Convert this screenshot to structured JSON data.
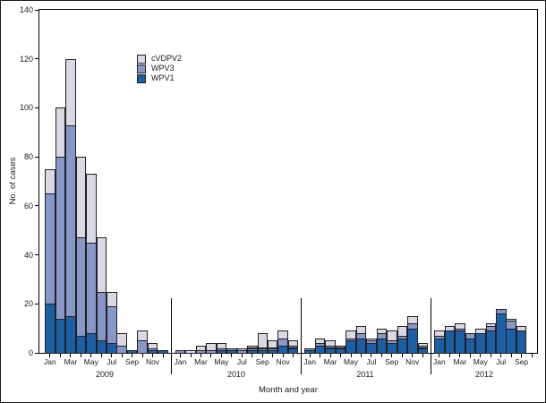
{
  "figure": {
    "y_axis_title": "No. of cases",
    "x_axis_title": "Month and year"
  },
  "legend": {
    "items": [
      {
        "label": "cVDPV2",
        "series": "cVDPV2"
      },
      {
        "label": "WPV3",
        "series": "WPV3"
      },
      {
        "label": "WPV1",
        "series": "WPV1"
      }
    ]
  },
  "chart_data": {
    "type": "bar",
    "subtype": "stacked-bar",
    "title": "",
    "ylabel": "No. of cases",
    "xlabel": "Month and year",
    "ylim": [
      0,
      140
    ],
    "ytick_step": 20,
    "yticks": [
      0,
      20,
      40,
      60,
      80,
      100,
      120,
      140
    ],
    "grid": false,
    "legend_position": "upper-left-inside",
    "month_names": [
      "Jan",
      "Feb",
      "Mar",
      "Apr",
      "May",
      "Jun",
      "Jul",
      "Aug",
      "Sep",
      "Oct",
      "Nov",
      "Dec"
    ],
    "labeled_month_indices": [
      0,
      2,
      4,
      6,
      8,
      10
    ],
    "series_order_bottom_to_top": [
      "WPV1",
      "WPV3",
      "cVDPV2"
    ],
    "colors": {
      "WPV1": "#1d5fa5",
      "WPV3": "#8697c8",
      "cVDPV2": "#d8d9e4",
      "bar_outline": "#231f20",
      "axis": "#000000"
    },
    "years": [
      {
        "year": "2009",
        "n_months": 12,
        "WPV1": [
          20,
          14,
          15,
          7,
          8,
          5,
          4,
          0,
          1,
          0,
          1,
          1
        ],
        "WPV3": [
          45,
          66,
          78,
          40,
          37,
          20,
          15,
          3,
          0,
          5,
          1,
          0
        ],
        "cVDPV2": [
          10,
          20,
          27,
          33,
          28,
          22,
          6,
          5,
          0,
          4,
          2,
          0
        ]
      },
      {
        "year": "2010",
        "n_months": 12,
        "WPV1": [
          0,
          0,
          0,
          0,
          1,
          1,
          0,
          1,
          1,
          1,
          3,
          2
        ],
        "WPV3": [
          1,
          0,
          1,
          1,
          1,
          1,
          1,
          1,
          1,
          1,
          3,
          1
        ],
        "cVDPV2": [
          0,
          1,
          2,
          3,
          2,
          0,
          1,
          1,
          6,
          3,
          3,
          2
        ]
      },
      {
        "year": "2011",
        "n_months": 12,
        "WPV1": [
          1,
          3,
          2,
          2,
          5,
          6,
          4,
          6,
          4,
          6,
          10,
          2
        ],
        "WPV3": [
          1,
          1,
          1,
          1,
          1,
          2,
          1,
          2,
          1,
          1,
          2,
          1
        ],
        "cVDPV2": [
          0,
          2,
          2,
          0,
          3,
          3,
          1,
          2,
          4,
          4,
          3,
          1
        ]
      },
      {
        "year": "2012",
        "n_months": 10,
        "WPV1": [
          6,
          9,
          9,
          6,
          8,
          9,
          16,
          10,
          9,
          0
        ],
        "WPV3": [
          1,
          0,
          1,
          2,
          0,
          2,
          2,
          3,
          0,
          0
        ],
        "cVDPV2": [
          2,
          2,
          2,
          0,
          2,
          1,
          0,
          1,
          2,
          0
        ]
      }
    ]
  }
}
